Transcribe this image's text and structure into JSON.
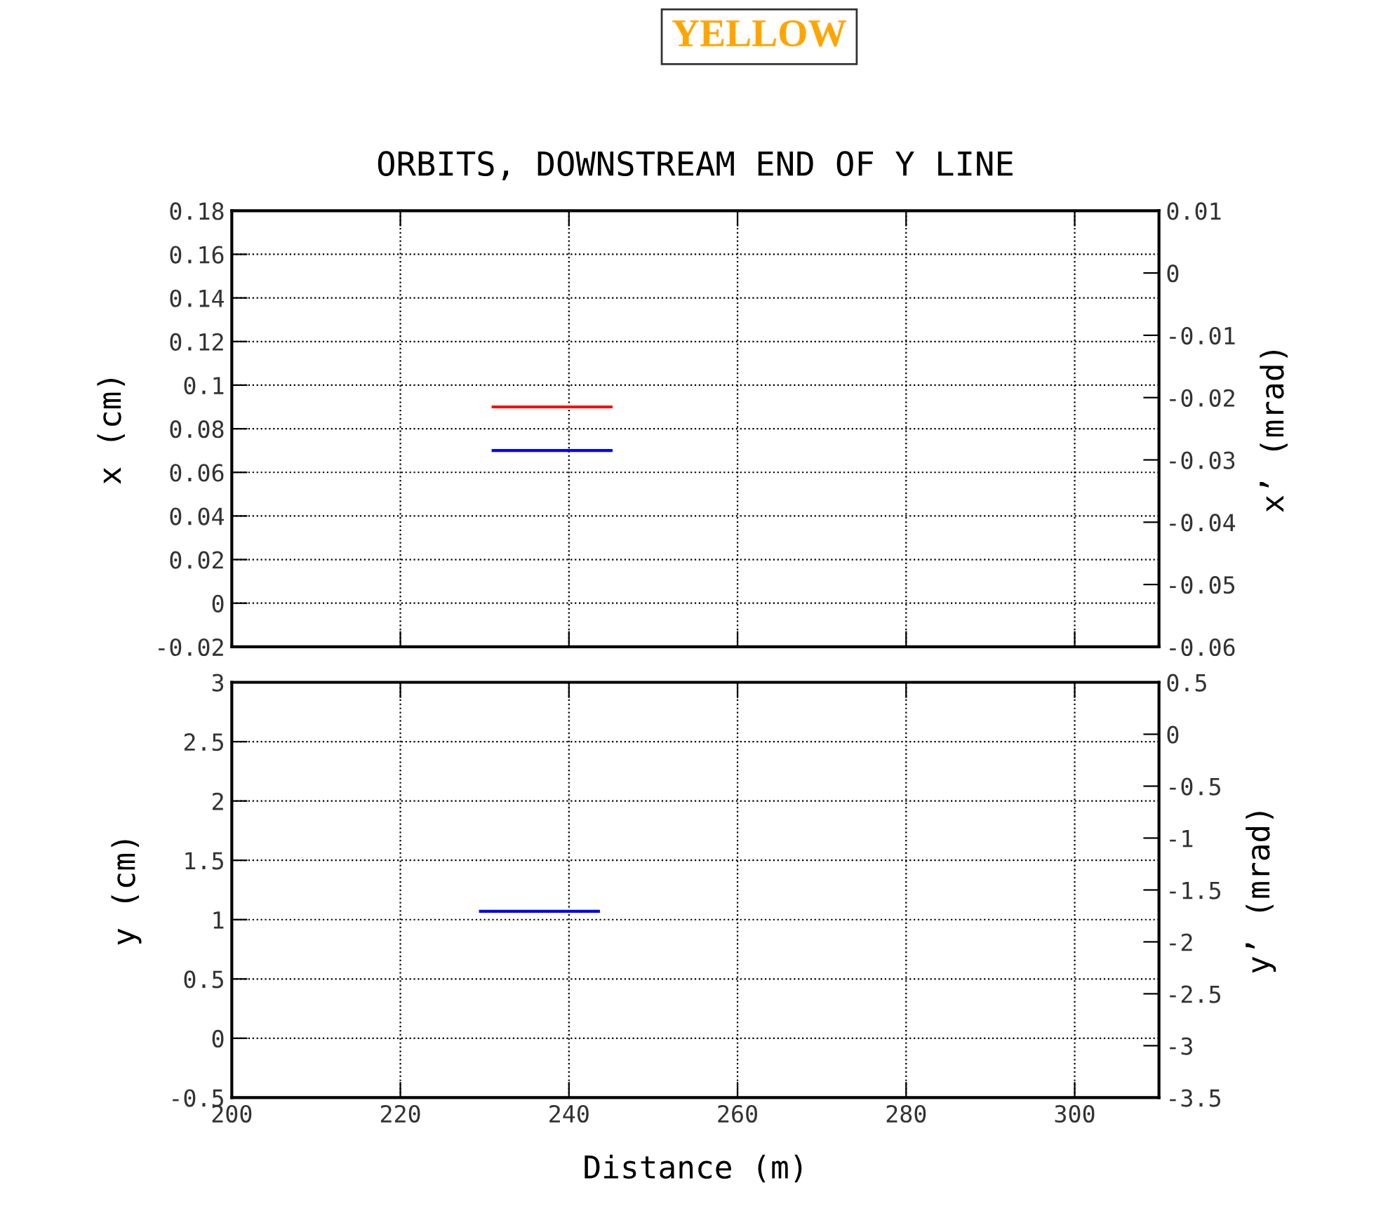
{
  "chart_data": [
    {
      "type": "line",
      "title": "ORBITS, DOWNSTREAM END OF Y LINE",
      "ylabel": "x (cm)",
      "y2label": "x’ (mrad)",
      "annotations": [
        "YELLOW"
      ],
      "series": [
        {
          "color": "#ff0000",
          "x": [
            231,
            245
          ],
          "values": [
            0.09,
            0.09
          ]
        },
        {
          "color": "#0000ff",
          "x": [
            231,
            245
          ],
          "values": [
            0.07,
            0.07
          ]
        }
      ],
      "xlim": [
        200,
        310
      ],
      "xticks": [
        200,
        220,
        240,
        260,
        280,
        300
      ],
      "ylim": [
        -0.02,
        0.18
      ],
      "yticks": [
        -0.02,
        0,
        0.02,
        0.04,
        0.06,
        0.08,
        0.1,
        0.12,
        0.14,
        0.16,
        0.18
      ],
      "y2lim": [
        -0.06,
        0.01
      ],
      "y2ticks": [
        -0.06,
        -0.05,
        -0.04,
        -0.03,
        -0.02,
        -0.01,
        0,
        0.01
      ],
      "grid": true,
      "tick_labels": "y",
      "line_style": "solid",
      "marker": "none"
    },
    {
      "type": "line",
      "xlabel": "Distance (m)",
      "ylabel": "y (cm)",
      "y2label": "y’ (mrad)",
      "series": [
        {
          "color": "#0000ff",
          "x": [
            229.5,
            243.5
          ],
          "values": [
            1.07,
            1.07
          ]
        }
      ],
      "xlim": [
        200,
        310
      ],
      "xticks": [
        200,
        220,
        240,
        260,
        280,
        300
      ],
      "ylim": [
        -0.5,
        3
      ],
      "yticks": [
        -0.5,
        0,
        0.5,
        1,
        1.5,
        2,
        2.5,
        3
      ],
      "y2lim": [
        -3.5,
        0.5
      ],
      "y2ticks": [
        -3.5,
        -3,
        -2.5,
        -2,
        -1.5,
        -1,
        -0.5,
        0,
        0.5
      ],
      "grid": true,
      "line_style": "solid",
      "marker": "none"
    }
  ]
}
